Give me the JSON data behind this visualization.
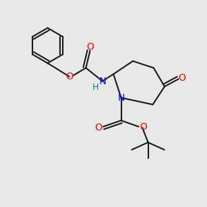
{
  "bg_color": "#e8e8e8",
  "bond_color": "#1a1a1a",
  "bond_lw": 1.5,
  "atom_colors": {
    "N": "#0000ff",
    "O": "#ff0000",
    "H": "#008080",
    "C": "#1a1a1a"
  },
  "font_size": 9
}
